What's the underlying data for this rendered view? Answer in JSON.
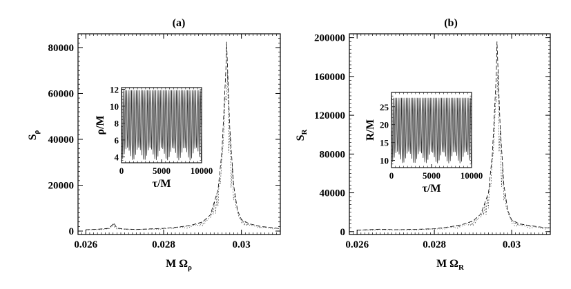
{
  "chart_data": [
    {
      "type": "line",
      "panel_label": "(a)",
      "xlabel": "M Ω",
      "xlabel_sub": "ρ",
      "ylabel": "S",
      "ylabel_sub": "ρ",
      "xlim": [
        0.0258,
        0.031
      ],
      "ylim": [
        -1500,
        86000
      ],
      "xticks": [
        0.026,
        0.028,
        0.03
      ],
      "xtick_labels": [
        "0.026",
        "0.028",
        "0.03"
      ],
      "yticks": [
        0,
        20000,
        40000,
        60000,
        80000
      ],
      "ytick_labels": [
        "0",
        "20000",
        "40000",
        "60000",
        "80000"
      ],
      "peak": {
        "x": 0.02962,
        "y": 82500
      },
      "secondary_peak": {
        "x": 0.02672,
        "y": 3500
      },
      "series": [
        {
          "name": "spectrum",
          "style": "dashed",
          "x": [
            0.026,
            0.0263,
            0.0266,
            0.02672,
            0.0268,
            0.027,
            0.0273,
            0.0276,
            0.028,
            0.0284,
            0.0287,
            0.029,
            0.0292,
            0.0294,
            0.0295,
            0.0296,
            0.02962,
            0.0297,
            0.0298,
            0.0299,
            0.03,
            0.0302,
            0.0305,
            0.0308,
            0.031
          ],
          "values": [
            600,
            800,
            1200,
            3500,
            1300,
            900,
            700,
            900,
            1200,
            1800,
            2500,
            4000,
            7000,
            18000,
            35000,
            70000,
            82500,
            45000,
            20000,
            9000,
            5000,
            3200,
            2000,
            1500,
            1000
          ]
        }
      ],
      "inset": {
        "xlabel": "τ/M",
        "ylabel": "ρ/M",
        "xlim": [
          0,
          10000
        ],
        "ylim": [
          3.3,
          12.2
        ],
        "xticks": [
          0,
          5000,
          10000
        ],
        "xtick_labels": [
          "0",
          "5000",
          "10000"
        ],
        "yticks": [
          4,
          6,
          8,
          10,
          12
        ],
        "ytick_labels": [
          "4",
          "6",
          "8",
          "10",
          "12"
        ],
        "osc_min": 3.6,
        "osc_max": 11.9,
        "cycles": 50,
        "mod_cycles": 7
      }
    },
    {
      "type": "line",
      "panel_label": "(b)",
      "xlabel": "M Ω",
      "xlabel_sub": "R",
      "ylabel": "S",
      "ylabel_sub": "R",
      "xlim": [
        0.0258,
        0.031
      ],
      "ylim": [
        -3000,
        204000
      ],
      "xticks": [
        0.026,
        0.028,
        0.03
      ],
      "xtick_labels": [
        "0.026",
        "0.028",
        "0.03"
      ],
      "yticks": [
        0,
        40000,
        80000,
        120000,
        160000,
        200000
      ],
      "ytick_labels": [
        "0",
        "40000",
        "80000",
        "120000",
        "160000",
        "200000"
      ],
      "peak": {
        "x": 0.02962,
        "y": 196000
      },
      "series": [
        {
          "name": "spectrum",
          "style": "dashed",
          "x": [
            0.026,
            0.0263,
            0.0266,
            0.027,
            0.0273,
            0.0276,
            0.028,
            0.0284,
            0.0287,
            0.029,
            0.0292,
            0.0294,
            0.0295,
            0.0296,
            0.02962,
            0.0297,
            0.0298,
            0.0299,
            0.03,
            0.0302,
            0.0305,
            0.0308,
            0.031
          ],
          "values": [
            1500,
            2000,
            2500,
            2000,
            2200,
            2500,
            3000,
            5000,
            7000,
            11000,
            18000,
            40000,
            80000,
            160000,
            196000,
            110000,
            48000,
            22000,
            12000,
            8000,
            6000,
            4500,
            3500
          ]
        }
      ],
      "inset": {
        "xlabel": "τ/M",
        "ylabel": "R/M",
        "xlim": [
          0,
          10000
        ],
        "ylim": [
          8,
          29
        ],
        "xticks": [
          0,
          5000,
          10000
        ],
        "xtick_labels": [
          "0",
          "5000",
          "10000"
        ],
        "yticks": [
          10,
          15,
          20,
          25
        ],
        "ytick_labels": [
          "10",
          "15",
          "20",
          "25"
        ],
        "osc_min": 9.2,
        "osc_max": 27.5,
        "cycles": 50,
        "mod_cycles": 7
      }
    }
  ]
}
